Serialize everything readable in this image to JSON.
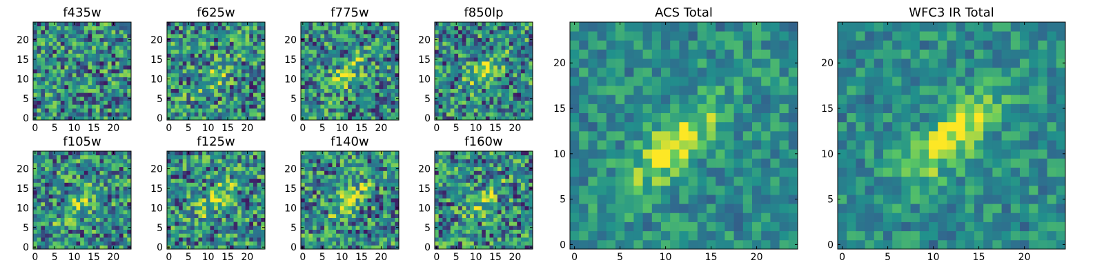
{
  "figure": {
    "description_text": ""
  },
  "palette": {
    "low": "#440154",
    "mid_low": "#31688e",
    "mid": "#21918c",
    "mid_high": "#5ec962",
    "high": "#fde725"
  },
  "chart_data": [
    {
      "type": "heatmap",
      "title": "f435w",
      "grid": [
        25,
        25
      ],
      "xlim": [
        0,
        24
      ],
      "ylim": [
        0,
        24
      ],
      "xticks": [
        "0",
        "5",
        "10",
        "15",
        "20"
      ],
      "yticks": [
        "0",
        "5",
        "10",
        "15",
        "20"
      ],
      "colormap": "viridis",
      "source_peak": null
    },
    {
      "type": "heatmap",
      "title": "f625w",
      "grid": [
        25,
        25
      ],
      "xlim": [
        0,
        24
      ],
      "ylim": [
        0,
        24
      ],
      "xticks": [
        "0",
        "5",
        "10",
        "15",
        "20"
      ],
      "yticks": [
        "0",
        "5",
        "10",
        "15",
        "20"
      ],
      "colormap": "viridis",
      "source_peak": [
        11,
        10
      ]
    },
    {
      "type": "heatmap",
      "title": "f775w",
      "grid": [
        25,
        25
      ],
      "xlim": [
        0,
        24
      ],
      "ylim": [
        0,
        24
      ],
      "xticks": [
        "0",
        "5",
        "10",
        "15",
        "20"
      ],
      "yticks": [
        "0",
        "5",
        "10",
        "15",
        "20"
      ],
      "colormap": "viridis",
      "source_peak": [
        11,
        11
      ]
    },
    {
      "type": "heatmap",
      "title": "f850lp",
      "grid": [
        25,
        25
      ],
      "xlim": [
        0,
        24
      ],
      "ylim": [
        0,
        24
      ],
      "xticks": [
        "0",
        "5",
        "10",
        "15",
        "20"
      ],
      "yticks": [
        "0",
        "5",
        "10",
        "15",
        "20"
      ],
      "colormap": "viridis",
      "source_peak": [
        12,
        12
      ]
    },
    {
      "type": "heatmap",
      "title": "f105w",
      "grid": [
        25,
        25
      ],
      "xlim": [
        0,
        24
      ],
      "ylim": [
        0,
        24
      ],
      "xticks": [
        "0",
        "5",
        "10",
        "15",
        "20"
      ],
      "yticks": [
        "0",
        "5",
        "10",
        "15",
        "20"
      ],
      "colormap": "viridis",
      "source_peak": [
        11,
        11
      ]
    },
    {
      "type": "heatmap",
      "title": "f125w",
      "grid": [
        25,
        25
      ],
      "xlim": [
        0,
        24
      ],
      "ylim": [
        0,
        24
      ],
      "xticks": [
        "0",
        "5",
        "10",
        "15",
        "20"
      ],
      "yticks": [
        "0",
        "5",
        "10",
        "15",
        "20"
      ],
      "colormap": "viridis",
      "source_peak": [
        12,
        12
      ]
    },
    {
      "type": "heatmap",
      "title": "f140w",
      "grid": [
        25,
        25
      ],
      "xlim": [
        0,
        24
      ],
      "ylim": [
        0,
        24
      ],
      "xticks": [
        "0",
        "5",
        "10",
        "15",
        "20"
      ],
      "yticks": [
        "0",
        "5",
        "10",
        "15",
        "20"
      ],
      "colormap": "viridis",
      "source_peak": [
        12,
        12
      ]
    },
    {
      "type": "heatmap",
      "title": "f160w",
      "grid": [
        25,
        25
      ],
      "xlim": [
        0,
        24
      ],
      "ylim": [
        0,
        24
      ],
      "xticks": [
        "0",
        "5",
        "10",
        "15",
        "20"
      ],
      "yticks": [
        "0",
        "5",
        "10",
        "15",
        "20"
      ],
      "colormap": "viridis",
      "source_peak": [
        12,
        12
      ]
    },
    {
      "type": "heatmap",
      "title": "ACS Total",
      "grid": [
        25,
        25
      ],
      "xlim": [
        0,
        24
      ],
      "ylim": [
        0,
        24
      ],
      "xticks": [
        "0",
        "5",
        "10",
        "15",
        "20"
      ],
      "yticks": [
        "0",
        "5",
        "10",
        "15",
        "20"
      ],
      "colormap": "viridis",
      "source_peak": [
        11,
        11
      ]
    },
    {
      "type": "heatmap",
      "title": "WFC3 IR Total",
      "grid": [
        25,
        25
      ],
      "xlim": [
        0,
        24
      ],
      "ylim": [
        0,
        24
      ],
      "xticks": [
        "0",
        "5",
        "10",
        "15",
        "20"
      ],
      "yticks": [
        "0",
        "5",
        "10",
        "15",
        "20"
      ],
      "colormap": "viridis",
      "source_peak": [
        12,
        12
      ]
    }
  ]
}
